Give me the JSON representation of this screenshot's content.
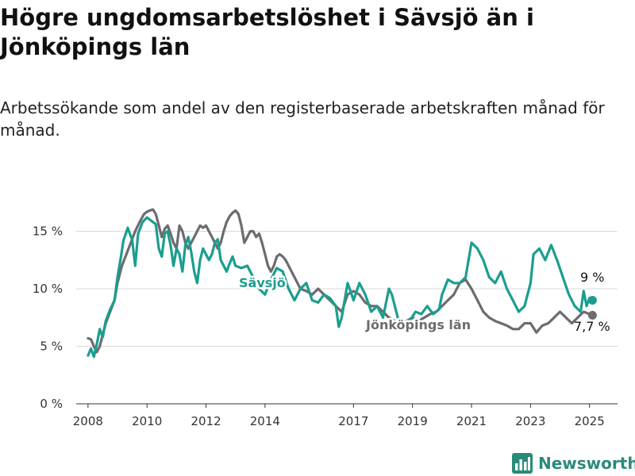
{
  "header": {
    "title": "Högre ungdomsarbetslöshet i Sävsjö än i Jönköpings län",
    "subtitle": "Arbetssökande som andel av den registerbaserade arbetskraften månad för månad."
  },
  "brand": {
    "name": "Newsworthy",
    "icon": "newsworthy-logo-icon",
    "color": "#2a8a7a"
  },
  "chart_data": {
    "type": "line",
    "ylim": [
      0,
      18
    ],
    "yticks": [
      0,
      5,
      10,
      15
    ],
    "ytick_labels": [
      "0 %",
      "5 %",
      "10 %",
      "15 %"
    ],
    "xticks": [
      2008,
      2010,
      2012,
      2014,
      2017,
      2019,
      2021,
      2023,
      2025
    ],
    "xlim": [
      2007.6,
      2025.95
    ],
    "grid": true,
    "series": [
      {
        "name": "Sävsjö",
        "color": "#1a9e8f",
        "end_label": "9 %",
        "points": [
          [
            2008.0,
            4.2
          ],
          [
            2008.1,
            4.8
          ],
          [
            2008.2,
            4.1
          ],
          [
            2008.3,
            5.2
          ],
          [
            2008.4,
            6.5
          ],
          [
            2008.5,
            5.8
          ],
          [
            2008.6,
            7.2
          ],
          [
            2008.75,
            8.2
          ],
          [
            2008.9,
            9.0
          ],
          [
            2009.0,
            11.0
          ],
          [
            2009.1,
            12.5
          ],
          [
            2009.2,
            14.2
          ],
          [
            2009.35,
            15.3
          ],
          [
            2009.5,
            14.2
          ],
          [
            2009.6,
            12.0
          ],
          [
            2009.7,
            14.8
          ],
          [
            2009.85,
            15.8
          ],
          [
            2010.0,
            16.2
          ],
          [
            2010.1,
            16.0
          ],
          [
            2010.2,
            15.8
          ],
          [
            2010.3,
            15.6
          ],
          [
            2010.4,
            13.5
          ],
          [
            2010.5,
            12.8
          ],
          [
            2010.6,
            14.8
          ],
          [
            2010.7,
            15.0
          ],
          [
            2010.8,
            13.8
          ],
          [
            2010.9,
            12.0
          ],
          [
            2011.0,
            13.5
          ],
          [
            2011.1,
            13.0
          ],
          [
            2011.2,
            11.5
          ],
          [
            2011.3,
            13.8
          ],
          [
            2011.4,
            14.5
          ],
          [
            2011.5,
            13.2
          ],
          [
            2011.6,
            11.5
          ],
          [
            2011.7,
            10.5
          ],
          [
            2011.8,
            12.5
          ],
          [
            2011.9,
            13.5
          ],
          [
            2012.0,
            13.0
          ],
          [
            2012.1,
            12.5
          ],
          [
            2012.2,
            13.0
          ],
          [
            2012.3,
            14.0
          ],
          [
            2012.4,
            14.3
          ],
          [
            2012.5,
            12.5
          ],
          [
            2012.6,
            12.0
          ],
          [
            2012.7,
            11.5
          ],
          [
            2012.8,
            12.2
          ],
          [
            2012.9,
            12.8
          ],
          [
            2013.0,
            12.0
          ],
          [
            2013.2,
            11.8
          ],
          [
            2013.4,
            12.0
          ],
          [
            2013.6,
            11.0
          ],
          [
            2013.8,
            10.0
          ],
          [
            2014.0,
            9.5
          ],
          [
            2014.2,
            10.8
          ],
          [
            2014.4,
            11.8
          ],
          [
            2014.6,
            11.5
          ],
          [
            2014.8,
            10.0
          ],
          [
            2015.0,
            9.0
          ],
          [
            2015.2,
            10.0
          ],
          [
            2015.4,
            10.5
          ],
          [
            2015.6,
            9.0
          ],
          [
            2015.8,
            8.8
          ],
          [
            2016.0,
            9.5
          ],
          [
            2016.2,
            9.2
          ],
          [
            2016.4,
            8.5
          ],
          [
            2016.5,
            6.7
          ],
          [
            2016.6,
            7.5
          ],
          [
            2016.8,
            10.5
          ],
          [
            2016.9,
            9.8
          ],
          [
            2017.0,
            9.0
          ],
          [
            2017.2,
            10.5
          ],
          [
            2017.4,
            9.5
          ],
          [
            2017.6,
            8.0
          ],
          [
            2017.8,
            8.5
          ],
          [
            2018.0,
            7.5
          ],
          [
            2018.2,
            10.0
          ],
          [
            2018.3,
            9.5
          ],
          [
            2018.5,
            7.5
          ],
          [
            2018.7,
            7.0
          ],
          [
            2018.9,
            7.2
          ],
          [
            2019.1,
            8.0
          ],
          [
            2019.3,
            7.8
          ],
          [
            2019.5,
            8.5
          ],
          [
            2019.7,
            7.8
          ],
          [
            2019.9,
            8.2
          ],
          [
            2020.0,
            9.5
          ],
          [
            2020.2,
            10.8
          ],
          [
            2020.4,
            10.5
          ],
          [
            2020.6,
            10.5
          ],
          [
            2020.8,
            11.0
          ],
          [
            2021.0,
            14.0
          ],
          [
            2021.2,
            13.5
          ],
          [
            2021.4,
            12.5
          ],
          [
            2021.6,
            11.0
          ],
          [
            2021.8,
            10.5
          ],
          [
            2022.0,
            11.5
          ],
          [
            2022.2,
            10.0
          ],
          [
            2022.4,
            9.0
          ],
          [
            2022.6,
            8.0
          ],
          [
            2022.8,
            8.5
          ],
          [
            2023.0,
            10.5
          ],
          [
            2023.1,
            13.0
          ],
          [
            2023.3,
            13.5
          ],
          [
            2023.5,
            12.5
          ],
          [
            2023.7,
            13.8
          ],
          [
            2023.9,
            12.5
          ],
          [
            2024.1,
            11.0
          ],
          [
            2024.3,
            9.5
          ],
          [
            2024.5,
            8.5
          ],
          [
            2024.7,
            8.0
          ],
          [
            2024.8,
            9.8
          ],
          [
            2024.9,
            8.5
          ],
          [
            2025.0,
            9.2
          ],
          [
            2025.1,
            9.0
          ]
        ]
      },
      {
        "name": "Jönköpings län",
        "color": "#6e6b70",
        "end_label": "7,7 %",
        "points": [
          [
            2008.0,
            5.7
          ],
          [
            2008.1,
            5.6
          ],
          [
            2008.2,
            5.0
          ],
          [
            2008.3,
            4.5
          ],
          [
            2008.4,
            5.0
          ],
          [
            2008.5,
            6.0
          ],
          [
            2008.6,
            7.0
          ],
          [
            2008.75,
            8.0
          ],
          [
            2008.9,
            9.0
          ],
          [
            2009.0,
            10.5
          ],
          [
            2009.15,
            12.0
          ],
          [
            2009.3,
            13.0
          ],
          [
            2009.45,
            14.0
          ],
          [
            2009.6,
            15.0
          ],
          [
            2009.75,
            15.8
          ],
          [
            2009.9,
            16.5
          ],
          [
            2010.0,
            16.7
          ],
          [
            2010.1,
            16.8
          ],
          [
            2010.2,
            16.9
          ],
          [
            2010.3,
            16.5
          ],
          [
            2010.4,
            15.5
          ],
          [
            2010.5,
            14.5
          ],
          [
            2010.6,
            15.2
          ],
          [
            2010.7,
            15.5
          ],
          [
            2010.8,
            14.8
          ],
          [
            2010.9,
            14.0
          ],
          [
            2011.0,
            13.5
          ],
          [
            2011.1,
            15.5
          ],
          [
            2011.2,
            15.0
          ],
          [
            2011.3,
            14.0
          ],
          [
            2011.4,
            13.5
          ],
          [
            2011.5,
            14.0
          ],
          [
            2011.6,
            14.5
          ],
          [
            2011.7,
            15.0
          ],
          [
            2011.8,
            15.5
          ],
          [
            2011.9,
            15.3
          ],
          [
            2012.0,
            15.5
          ],
          [
            2012.1,
            15.0
          ],
          [
            2012.2,
            14.5
          ],
          [
            2012.3,
            14.0
          ],
          [
            2012.4,
            13.5
          ],
          [
            2012.5,
            14.0
          ],
          [
            2012.6,
            15.0
          ],
          [
            2012.7,
            15.8
          ],
          [
            2012.8,
            16.3
          ],
          [
            2012.9,
            16.6
          ],
          [
            2013.0,
            16.8
          ],
          [
            2013.1,
            16.5
          ],
          [
            2013.2,
            15.5
          ],
          [
            2013.3,
            14.0
          ],
          [
            2013.4,
            14.5
          ],
          [
            2013.5,
            15.0
          ],
          [
            2013.6,
            15.0
          ],
          [
            2013.7,
            14.5
          ],
          [
            2013.8,
            14.8
          ],
          [
            2013.9,
            14.0
          ],
          [
            2014.0,
            13.0
          ],
          [
            2014.1,
            12.0
          ],
          [
            2014.2,
            11.5
          ],
          [
            2014.3,
            12.0
          ],
          [
            2014.4,
            12.8
          ],
          [
            2014.5,
            13.0
          ],
          [
            2014.6,
            12.8
          ],
          [
            2014.7,
            12.5
          ],
          [
            2014.8,
            12.0
          ],
          [
            2014.9,
            11.5
          ],
          [
            2015.0,
            11.0
          ],
          [
            2015.2,
            10.0
          ],
          [
            2015.4,
            9.8
          ],
          [
            2015.6,
            9.5
          ],
          [
            2015.8,
            10.0
          ],
          [
            2016.0,
            9.5
          ],
          [
            2016.2,
            9.0
          ],
          [
            2016.4,
            8.5
          ],
          [
            2016.6,
            8.0
          ],
          [
            2016.8,
            9.5
          ],
          [
            2017.0,
            9.8
          ],
          [
            2017.2,
            9.5
          ],
          [
            2017.4,
            8.8
          ],
          [
            2017.6,
            8.5
          ],
          [
            2017.8,
            8.5
          ],
          [
            2018.0,
            8.0
          ],
          [
            2018.2,
            7.5
          ],
          [
            2018.4,
            7.2
          ],
          [
            2018.6,
            7.0
          ],
          [
            2018.8,
            7.2
          ],
          [
            2019.0,
            7.5
          ],
          [
            2019.2,
            7.2
          ],
          [
            2019.4,
            7.5
          ],
          [
            2019.6,
            7.8
          ],
          [
            2019.8,
            8.0
          ],
          [
            2020.0,
            8.5
          ],
          [
            2020.2,
            9.0
          ],
          [
            2020.4,
            9.5
          ],
          [
            2020.6,
            10.5
          ],
          [
            2020.8,
            10.8
          ],
          [
            2021.0,
            10.0
          ],
          [
            2021.2,
            9.0
          ],
          [
            2021.4,
            8.0
          ],
          [
            2021.6,
            7.5
          ],
          [
            2021.8,
            7.2
          ],
          [
            2022.0,
            7.0
          ],
          [
            2022.2,
            6.8
          ],
          [
            2022.4,
            6.5
          ],
          [
            2022.6,
            6.5
          ],
          [
            2022.8,
            7.0
          ],
          [
            2023.0,
            7.0
          ],
          [
            2023.2,
            6.2
          ],
          [
            2023.4,
            6.8
          ],
          [
            2023.6,
            7.0
          ],
          [
            2023.8,
            7.5
          ],
          [
            2024.0,
            8.0
          ],
          [
            2024.2,
            7.5
          ],
          [
            2024.4,
            7.0
          ],
          [
            2024.6,
            7.5
          ],
          [
            2024.8,
            8.0
          ],
          [
            2025.0,
            7.8
          ],
          [
            2025.1,
            7.7
          ]
        ]
      }
    ]
  }
}
